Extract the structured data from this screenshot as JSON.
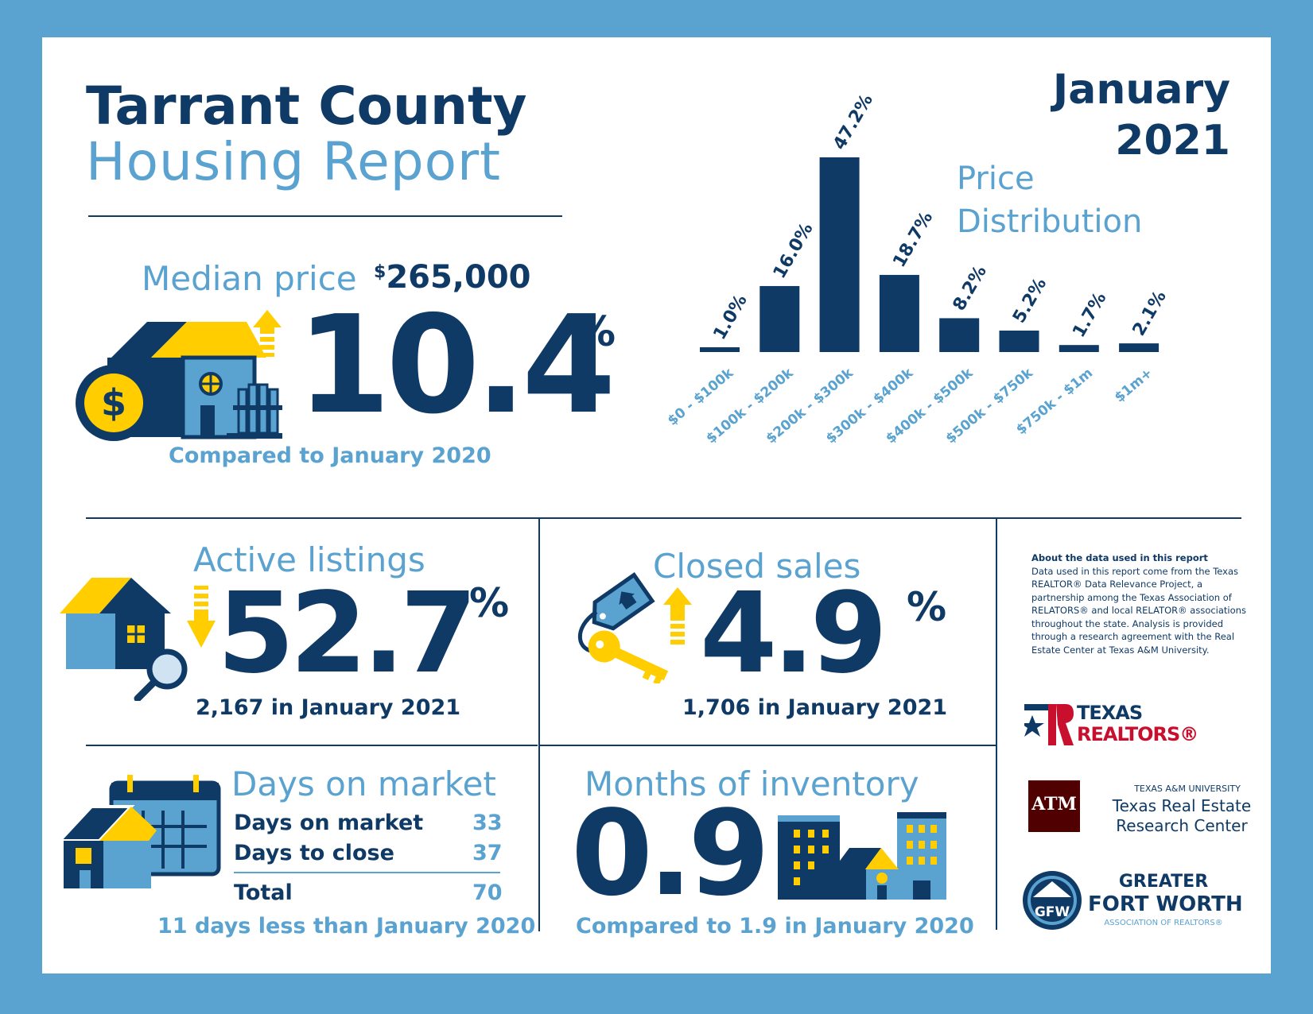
{
  "header": {
    "title_line1": "Tarrant County",
    "title_line2": "Housing Report",
    "month": "January",
    "year": "2021"
  },
  "median": {
    "label": "Median price",
    "price_symbol": "$",
    "price_value": "265,000",
    "change_value": "10.4",
    "change_unit": "%",
    "direction": "up",
    "comparison": "Compared to January 2020"
  },
  "price_distribution": {
    "title_line1": "Price",
    "title_line2": "Distribution"
  },
  "chart_data": {
    "type": "bar",
    "title": "Price Distribution",
    "categories": [
      "$0 - $100k",
      "$100k - $200k",
      "$200k - $300k",
      "$300k - $400k",
      "$400k - $500k",
      "$500k - $750k",
      "$750k - $1m",
      "$1m+"
    ],
    "values": [
      1.0,
      16.0,
      47.2,
      18.7,
      8.2,
      5.2,
      1.7,
      2.1
    ],
    "value_labels": [
      "1.0%",
      "16.0%",
      "47.2%",
      "18.7%",
      "8.2%",
      "5.2%",
      "1.7%",
      "2.1%"
    ],
    "unit": "%",
    "ylim": [
      0,
      47.2
    ],
    "grid": false,
    "color": "#0f3a66",
    "label_color": "#5aa2d0"
  },
  "active_listings": {
    "label": "Active listings",
    "change_value": "52.7",
    "change_unit": "%",
    "direction": "down",
    "detail": "2,167 in January 2021"
  },
  "closed_sales": {
    "label": "Closed sales",
    "change_value": "4.9",
    "change_unit": "%",
    "direction": "up",
    "detail": "1,706 in January 2021"
  },
  "days_on_market": {
    "label": "Days on market",
    "rows": [
      {
        "label": "Days on market",
        "value": "33"
      },
      {
        "label": "Days to close",
        "value": "37"
      }
    ],
    "total_label": "Total",
    "total_value": "70",
    "comparison": "11 days less than January 2020"
  },
  "months_inventory": {
    "label": "Months of inventory",
    "value": "0.9",
    "comparison": "Compared to 1.9 in January 2020"
  },
  "about": {
    "heading": "About the data used in this report",
    "body": "Data used in this report come from the Texas REALTOR® Data Relevance Project, a partnership among the Texas Association of RELATORS® and local RELATOR® associations throughout the state. Analysis is provided through a research agreement with the Real Estate Center at Texas A&M University."
  },
  "logos": {
    "texas_realtors": [
      "TEXAS",
      "REALTORS®"
    ],
    "tamu_small": "TEXAS A&M UNIVERSITY",
    "tamu_line1": "Texas Real Estate",
    "tamu_line2": "Research Center",
    "tamu_mark": "ATM",
    "gfw_line1": "GREATER",
    "gfw_line2": "FORT WORTH",
    "gfw_line3": "ASSOCIATION OF REALTORS®",
    "gfw_mark": "GFW"
  },
  "colors": {
    "navy": "#0f3a66",
    "light_blue": "#5aa2d0",
    "yellow": "#ffcd00",
    "maroon": "#500000",
    "red": "#c8102e"
  },
  "icons": [
    "house-with-dollar-icon",
    "up-arrow-icon",
    "down-arrow-icon",
    "house-magnifier-icon",
    "price-tag-key-icon",
    "calendar-house-icon",
    "city-buildings-icon"
  ]
}
